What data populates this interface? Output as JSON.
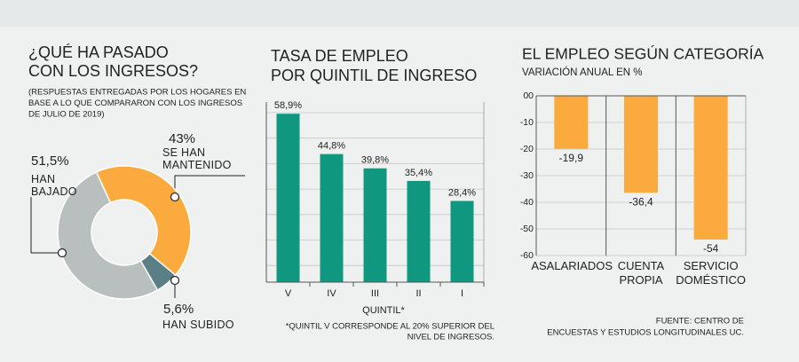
{
  "chart_data": [
    {
      "type": "donut",
      "title": [
        "¿QUÉ HA PASADO",
        "CON LOS INGRESOS?"
      ],
      "subtitle": [
        "(RESPUESTAS ENTREGADAS POR LOS HOGARES EN",
        "BASE A LO QUE COMPARARON CON LOS INGRESOS",
        "DE JULIO DE 2019)"
      ],
      "categories": [
        "HAN BAJADO",
        "SE HAN MANTENIDO",
        "HAN SUBIDO"
      ],
      "values": [
        51.5,
        43,
        5.6
      ],
      "value_labels": [
        "51,5%",
        "43%",
        "5,6%"
      ],
      "colors": [
        "#b9bebe",
        "#fbab3d",
        "#5a7f86"
      ]
    },
    {
      "type": "bar",
      "title": [
        "TASA DE EMPLEO",
        "POR QUINTIL DE INGRESO"
      ],
      "categories": [
        "V",
        "IV",
        "III",
        "II",
        "I"
      ],
      "values": [
        58.9,
        44.8,
        39.8,
        35.4,
        28.4
      ],
      "value_labels": [
        "58,9%",
        "44,8%",
        "39,8%",
        "35,4%",
        "28,4%"
      ],
      "color": "#10977f",
      "ylim": [
        0,
        63
      ],
      "xlabel": "QUINTIL*",
      "note": [
        "*QUINTIL V CORRESPONDE AL 20% SUPERIOR DEL",
        "NIVEL DE INGRESOS."
      ]
    },
    {
      "type": "bar",
      "title": [
        "EL EMPLEO SEGÚN CATEGORÍA"
      ],
      "subtitle": [
        "VARIACIÓN ANUAL EN %"
      ],
      "categories": [
        "ASALARIADOS",
        "CUENTA PROPIA",
        "SERVICIO DOMÉSTICO"
      ],
      "values": [
        -19.9,
        -36.4,
        -54
      ],
      "value_labels": [
        "-19,9",
        "-36,4",
        "-54"
      ],
      "color": "#fbab3d",
      "ylim": [
        -60,
        0
      ],
      "yticks": [
        {
          "value": 0,
          "label": "00"
        },
        -10,
        -20,
        -30,
        -40,
        -50,
        -60
      ],
      "source": [
        "FUENTE: CENTRO DE",
        "ENCUESTAS Y ESTUDIOS LONGITUDINALES UC."
      ]
    }
  ]
}
